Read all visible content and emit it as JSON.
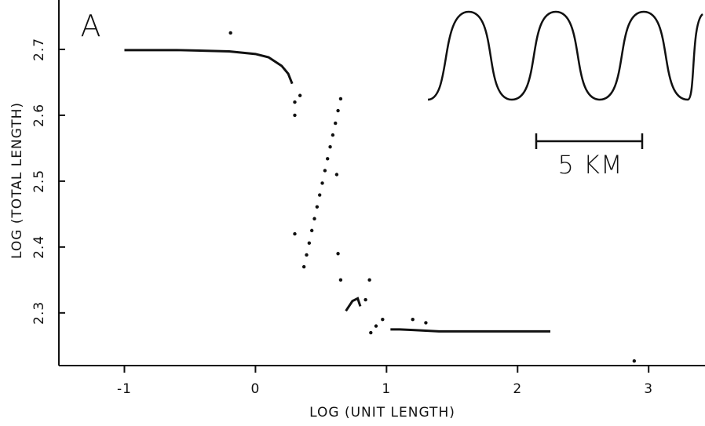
{
  "chart_data": {
    "type": "scatter",
    "panel_label": "A",
    "x_label": "LOG (UNIT LENGTH)",
    "y_label": "LOG (TOTAL LENGTH)",
    "inset_scale_label": "5 KM",
    "xlim": [
      -1.5,
      3.43
    ],
    "xticks": [
      -1,
      0,
      1,
      2,
      3
    ],
    "ylim": [
      2.22,
      2.775
    ],
    "yticks": [
      2.3,
      2.4,
      2.5,
      2.6,
      2.7
    ],
    "color": "#111111",
    "series": [
      {
        "line": true,
        "x": [
          -1,
          -0.8,
          -0.6,
          -0.4,
          -0.2,
          0,
          0.1,
          0.2,
          0.25,
          0.28
        ],
        "values": [
          2.699,
          2.699,
          2.699,
          2.698,
          2.697,
          2.693,
          2.688,
          2.675,
          2.663,
          2.648
        ]
      },
      {
        "line": true,
        "x": [
          0.69,
          0.74,
          0.78,
          0.8
        ],
        "values": [
          2.303,
          2.318,
          2.322,
          2.31
        ]
      },
      {
        "line": true,
        "x": [
          1.03,
          1.1,
          1.2,
          1.3,
          1.4,
          1.5,
          1.7,
          1.9,
          2.1,
          2.25
        ],
        "values": [
          2.275,
          2.275,
          2.274,
          2.273,
          2.272,
          2.272,
          2.272,
          2.272,
          2.272,
          2.272
        ]
      },
      {
        "line": false,
        "x": [
          0.37,
          0.39,
          0.41,
          0.43,
          0.45,
          0.47,
          0.49,
          0.51,
          0.53,
          0.55,
          0.57,
          0.59,
          0.61,
          0.63,
          0.65,
          -0.19,
          0.3,
          0.3,
          0.34,
          0.63,
          0.65,
          0.84,
          0.87,
          0.88,
          0.92,
          0.97,
          1.2,
          1.3,
          0.3,
          0.62,
          2.89
        ],
        "values": [
          2.37,
          2.388,
          2.406,
          2.425,
          2.443,
          2.461,
          2.479,
          2.497,
          2.516,
          2.534,
          2.552,
          2.57,
          2.588,
          2.607,
          2.625,
          2.725,
          2.62,
          2.6,
          2.63,
          2.39,
          2.35,
          2.32,
          2.35,
          2.27,
          2.28,
          2.29,
          2.29,
          2.285,
          2.42,
          2.51,
          2.227
        ]
      }
    ]
  }
}
